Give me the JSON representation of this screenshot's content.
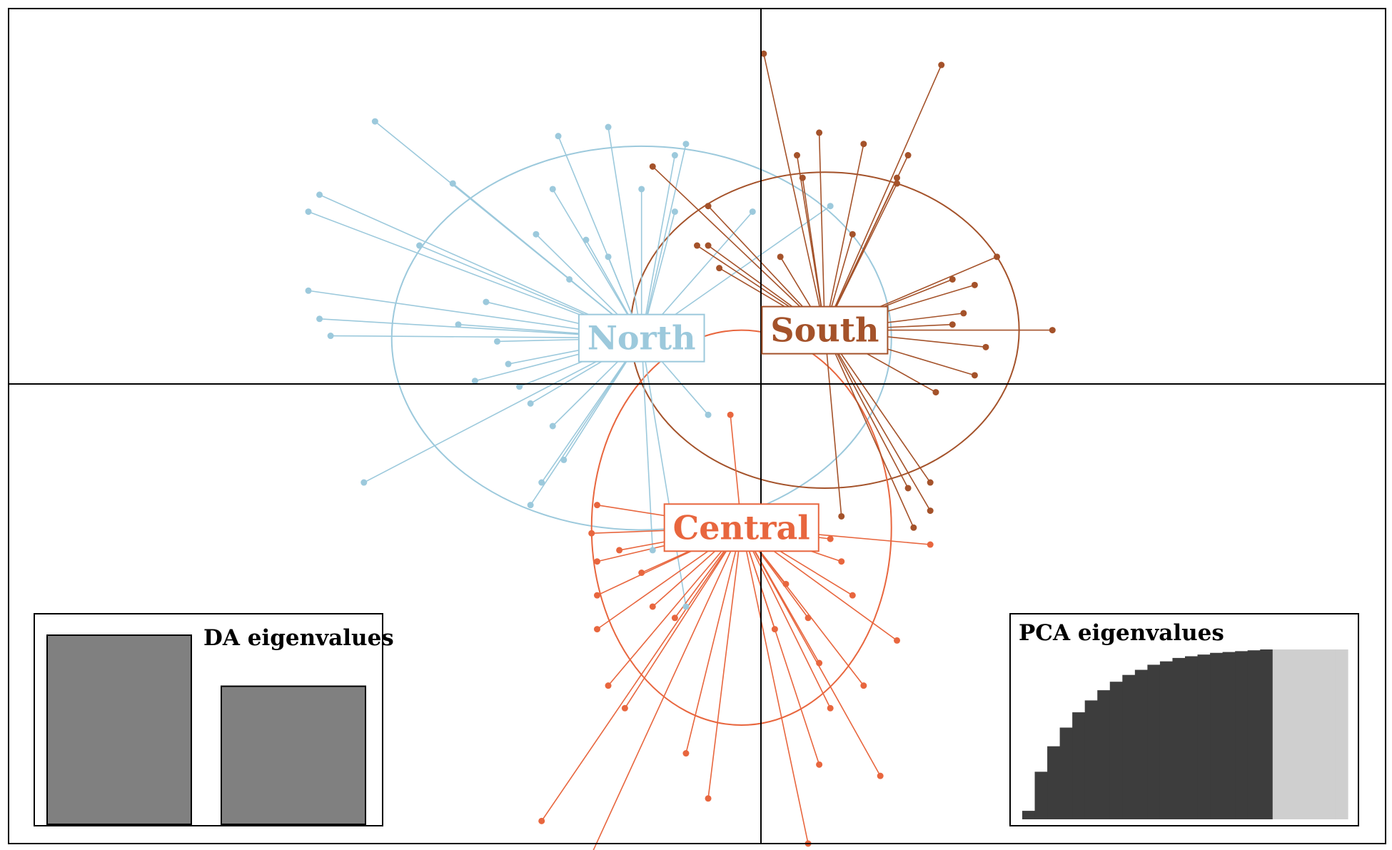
{
  "chart_data": {
    "type": "scatter",
    "title": "",
    "xlabel": "",
    "ylabel": "",
    "grid": false,
    "axes_origin": [
      0,
      0
    ],
    "xlim": [
      -6.6,
      5.8
    ],
    "ylim": [
      -4.1,
      3.3
    ],
    "colors": {
      "North": "#9cc9dc",
      "South": "#a4522a",
      "Central": "#e8663e"
    },
    "series": [
      {
        "name": "North",
        "centroid": [
          -0.9,
          0.38
        ],
        "ellipse": {
          "rx": 2.25,
          "ry": 1.7
        },
        "points": [
          [
            -3.3,
            2.3
          ],
          [
            -3.8,
            1.65
          ],
          [
            -3.9,
            1.5
          ],
          [
            -2.6,
            1.75
          ],
          [
            -2.9,
            1.2
          ],
          [
            -3.9,
            0.8
          ],
          [
            -3.8,
            0.55
          ],
          [
            -3.7,
            0.4
          ],
          [
            -1.65,
            2.17
          ],
          [
            -1.2,
            2.25
          ],
          [
            -0.6,
            2.0
          ],
          [
            -0.5,
            2.1
          ],
          [
            -1.7,
            1.7
          ],
          [
            -1.85,
            1.3
          ],
          [
            -2.55,
            0.5
          ],
          [
            -2.2,
            0.35
          ],
          [
            -2.1,
            0.15
          ],
          [
            -2.4,
            0.0
          ],
          [
            -1.9,
            -0.2
          ],
          [
            -3.4,
            -0.9
          ],
          [
            -1.9,
            -1.1
          ],
          [
            -1.8,
            -0.9
          ],
          [
            -1.6,
            -0.7
          ],
          [
            -0.6,
            1.5
          ],
          [
            0.8,
            1.55
          ],
          [
            0.1,
            1.5
          ],
          [
            -1.2,
            1.1
          ],
          [
            -0.3,
            -0.3
          ],
          [
            -0.5,
            -2.0
          ],
          [
            -0.8,
            -1.5
          ],
          [
            -1.7,
            -0.4
          ],
          [
            -2.0,
            -0.05
          ],
          [
            -1.4,
            1.25
          ],
          [
            -0.9,
            1.7
          ],
          [
            -1.55,
            0.9
          ],
          [
            -2.3,
            0.7
          ]
        ]
      },
      {
        "name": "South",
        "centroid": [
          0.75,
          0.45
        ],
        "ellipse": {
          "rx": 1.75,
          "ry": 1.4
        },
        "points": [
          [
            0.2,
            2.9
          ],
          [
            1.8,
            2.8
          ],
          [
            0.5,
            2.0
          ],
          [
            0.55,
            1.8
          ],
          [
            1.5,
            2.0
          ],
          [
            1.4,
            1.75
          ],
          [
            -0.8,
            1.9
          ],
          [
            -0.3,
            1.55
          ],
          [
            -0.4,
            1.2
          ],
          [
            0.35,
            1.1
          ],
          [
            1.0,
            1.3
          ],
          [
            2.3,
            1.1
          ],
          [
            2.1,
            0.85
          ],
          [
            2.8,
            0.45
          ],
          [
            2.2,
            0.3
          ],
          [
            2.1,
            0.05
          ],
          [
            1.75,
            -0.1
          ],
          [
            1.7,
            -0.9
          ],
          [
            1.5,
            -0.95
          ],
          [
            1.7,
            -1.15
          ],
          [
            1.55,
            -1.3
          ],
          [
            0.9,
            -1.2
          ],
          [
            -0.2,
            1.0
          ],
          [
            -0.3,
            1.2
          ],
          [
            1.9,
            0.9
          ],
          [
            2.0,
            0.6
          ],
          [
            1.9,
            0.5
          ],
          [
            1.4,
            1.8
          ],
          [
            0.7,
            2.2
          ],
          [
            1.1,
            2.1
          ]
        ]
      },
      {
        "name": "Central",
        "centroid": [
          0.0,
          -1.3
        ],
        "ellipse": {
          "rx": 1.35,
          "ry": 1.75
        },
        "points": [
          [
            -1.8,
            -3.9
          ],
          [
            -1.4,
            -4.3
          ],
          [
            -1.3,
            -1.1
          ],
          [
            -1.35,
            -1.35
          ],
          [
            -1.3,
            -1.6
          ],
          [
            -1.3,
            -1.9
          ],
          [
            -1.3,
            -2.2
          ],
          [
            -1.2,
            -2.7
          ],
          [
            -1.05,
            -2.9
          ],
          [
            0.6,
            -4.1
          ],
          [
            0.7,
            -3.4
          ],
          [
            1.25,
            -3.5
          ],
          [
            0.8,
            -2.9
          ],
          [
            1.1,
            -2.7
          ],
          [
            1.4,
            -2.3
          ],
          [
            1.7,
            -1.45
          ],
          [
            0.8,
            -1.4
          ],
          [
            0.9,
            -1.6
          ],
          [
            -0.5,
            -3.3
          ],
          [
            -0.3,
            -3.7
          ],
          [
            0.3,
            -2.2
          ],
          [
            -0.8,
            -2.0
          ],
          [
            0.7,
            -2.5
          ],
          [
            -0.1,
            -0.3
          ],
          [
            -0.9,
            -1.7
          ],
          [
            -0.6,
            -2.1
          ],
          [
            0.4,
            -1.8
          ],
          [
            0.6,
            -2.1
          ],
          [
            1.0,
            -1.9
          ],
          [
            -1.1,
            -1.5
          ]
        ]
      }
    ],
    "insets": [
      {
        "title": "DA eigenvalues",
        "type": "bar",
        "values": [
          1.0,
          0.73
        ]
      },
      {
        "title": "PCA eigenvalues",
        "type": "cumulative_bar",
        "retained_axes": 20,
        "cumulative_values": [
          0.05,
          0.28,
          0.43,
          0.54,
          0.63,
          0.7,
          0.76,
          0.81,
          0.85,
          0.88,
          0.91,
          0.93,
          0.95,
          0.96,
          0.97,
          0.98,
          0.985,
          0.99,
          0.995,
          1.0,
          1.0,
          1.0,
          1.0,
          1.0,
          1.0,
          1.0
        ]
      }
    ]
  }
}
